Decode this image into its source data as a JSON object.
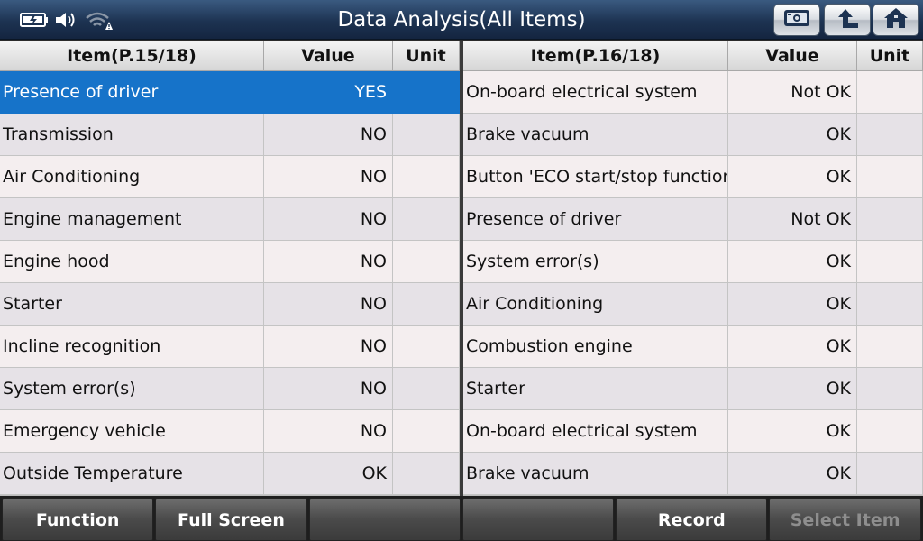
{
  "titlebar": {
    "title": "Data Analysis(All Items)",
    "status_icons": [
      "battery-icon",
      "speaker-icon",
      "wifi-warning-icon"
    ],
    "buttons": [
      "snapshot-icon",
      "back-icon",
      "home-icon"
    ]
  },
  "left_table": {
    "headers": {
      "item": "Item(P.15/18)",
      "value": "Value",
      "unit": "Unit"
    },
    "rows": [
      {
        "item": "Presence of driver",
        "value": "YES",
        "unit": ""
      },
      {
        "item": "Transmission",
        "value": "NO",
        "unit": ""
      },
      {
        "item": "Air Conditioning",
        "value": "NO",
        "unit": ""
      },
      {
        "item": "Engine management",
        "value": "NO",
        "unit": ""
      },
      {
        "item": "Engine hood",
        "value": "NO",
        "unit": ""
      },
      {
        "item": "Starter",
        "value": "NO",
        "unit": ""
      },
      {
        "item": "Incline recognition",
        "value": "NO",
        "unit": ""
      },
      {
        "item": "System error(s)",
        "value": "NO",
        "unit": ""
      },
      {
        "item": "Emergency vehicle",
        "value": "NO",
        "unit": ""
      },
      {
        "item": "Outside Temperature",
        "value": "OK",
        "unit": ""
      }
    ],
    "selected_row": 0
  },
  "right_table": {
    "headers": {
      "item": "Item(P.16/18)",
      "value": "Value",
      "unit": "Unit"
    },
    "rows": [
      {
        "item": "On-board electrical system",
        "value": "Not OK",
        "unit": ""
      },
      {
        "item": "Brake vacuum",
        "value": "OK",
        "unit": ""
      },
      {
        "item": "Button 'ECO start/stop function'",
        "value": "OK",
        "unit": ""
      },
      {
        "item": "Presence of driver",
        "value": "Not OK",
        "unit": ""
      },
      {
        "item": "System error(s)",
        "value": "OK",
        "unit": ""
      },
      {
        "item": "Air Conditioning",
        "value": "OK",
        "unit": ""
      },
      {
        "item": "Combustion engine",
        "value": "OK",
        "unit": ""
      },
      {
        "item": "Starter",
        "value": "OK",
        "unit": ""
      },
      {
        "item": "On-board electrical system",
        "value": "OK",
        "unit": ""
      },
      {
        "item": "Brake vacuum",
        "value": "OK",
        "unit": ""
      }
    ]
  },
  "toolbar": {
    "buttons": [
      {
        "label": "Function",
        "enabled": true
      },
      {
        "label": "Full Screen",
        "enabled": true
      },
      {
        "label": "",
        "enabled": true
      },
      {
        "label": "",
        "enabled": true
      },
      {
        "label": "Record",
        "enabled": true
      },
      {
        "label": "Select Item",
        "enabled": false
      }
    ]
  },
  "colors": {
    "titlebar": "#1d3352",
    "selected_row": "#1673c9",
    "row_odd": "#f4eeef",
    "row_even": "#e6e2e7",
    "toolbar_button": "#4a4a4a"
  }
}
